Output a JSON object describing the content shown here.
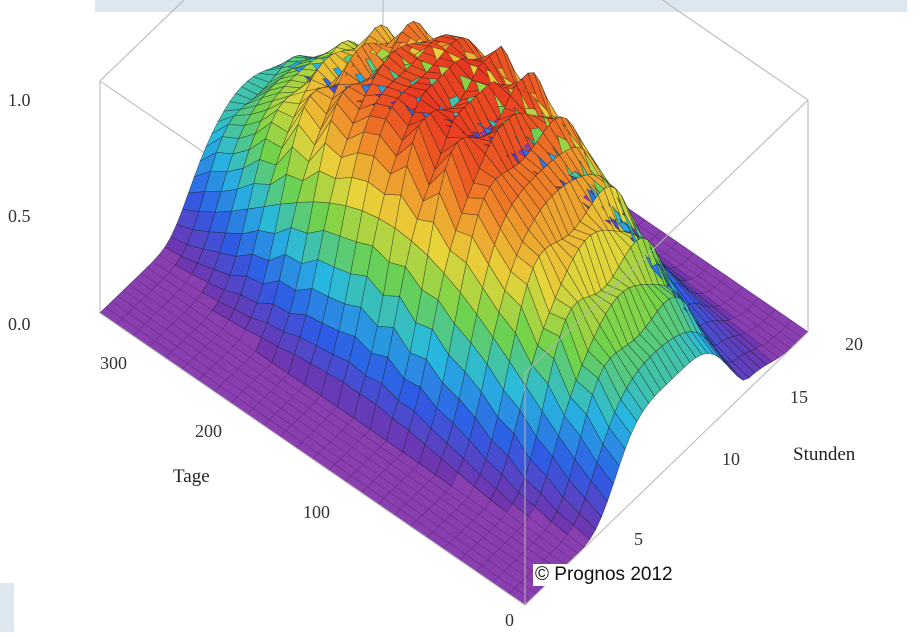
{
  "chart_data": {
    "type": "surface3d",
    "x_axis": {
      "label": "Stunden",
      "ticks": [
        "5",
        "10",
        "15",
        "20"
      ],
      "range": [
        0,
        24
      ]
    },
    "y_axis": {
      "label": "Tage",
      "ticks": [
        "0",
        "100",
        "200",
        "300"
      ],
      "range": [
        0,
        365
      ]
    },
    "z_axis": {
      "ticks": [
        "0.0",
        "0.5",
        "1.0"
      ],
      "range": [
        0,
        1.0
      ]
    },
    "peak": {
      "value": 1.0,
      "hour": 12,
      "day": 180
    },
    "colormap": [
      "#7b2fa8",
      "#2e5ce6",
      "#27b8e0",
      "#6fd34a",
      "#e8d43a",
      "#f08a2a",
      "#e8321f"
    ],
    "floor_color": "#8a3fb0",
    "credit": "© Prognos 2012"
  },
  "frame": {
    "panel_color": "#dce7ef"
  }
}
